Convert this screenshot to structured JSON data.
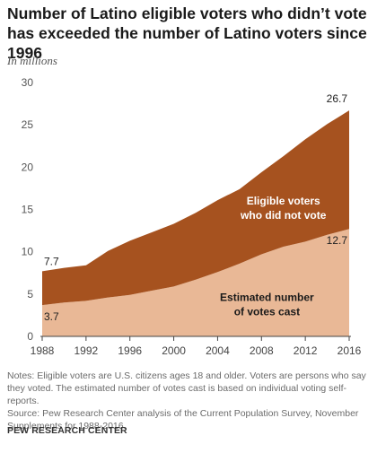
{
  "title": "Number of Latino eligible voters who didn’t vote has exceeded the number of Latino voters since 1996",
  "unit_label": "In millions",
  "chart_data": {
    "type": "area",
    "stacked": true,
    "title": "Number of Latino eligible voters who didn’t vote has exceeded the number of Latino voters since 1996",
    "ylabel": "In millions",
    "x": [
      1988,
      1990,
      1992,
      1994,
      1996,
      1998,
      2000,
      2002,
      2004,
      2006,
      2008,
      2010,
      2012,
      2014,
      2016
    ],
    "xticks": [
      "1988",
      "1992",
      "1996",
      "2000",
      "2004",
      "2008",
      "2012",
      "2016"
    ],
    "yticks": [
      "0",
      "5",
      "10",
      "15",
      "20",
      "25",
      "30"
    ],
    "ylim": [
      0,
      30
    ],
    "series": [
      {
        "name": "Estimated number of votes cast",
        "label_lines": [
          "Estimated number",
          "of votes cast"
        ],
        "color": "#e9b896",
        "values": [
          3.7,
          4.0,
          4.2,
          4.6,
          4.9,
          5.4,
          5.9,
          6.7,
          7.6,
          8.6,
          9.7,
          10.6,
          11.2,
          12.0,
          12.7
        ]
      },
      {
        "name": "Eligible voters who did not vote",
        "label_lines": [
          "Eligible voters",
          "who did not vote"
        ],
        "color": "#a6521f",
        "values": [
          4.0,
          4.1,
          4.2,
          5.5,
          6.4,
          6.9,
          7.4,
          7.9,
          8.5,
          8.8,
          9.7,
          10.7,
          12.1,
          13.1,
          14.0
        ]
      }
    ],
    "totals": [
      7.7,
      8.1,
      8.4,
      10.1,
      11.3,
      12.3,
      13.3,
      14.6,
      16.1,
      17.4,
      19.4,
      21.3,
      23.3,
      25.1,
      26.7
    ],
    "data_labels": [
      {
        "text": "7.7",
        "x": 1988,
        "value": 7.7
      },
      {
        "text": "3.7",
        "x": 1988,
        "value": 3.7
      },
      {
        "text": "26.7",
        "x": 2016,
        "value": 26.7
      },
      {
        "text": "12.7",
        "x": 2016,
        "value": 12.7
      }
    ],
    "grid": false
  },
  "notes": [
    "Notes: Eligible voters are U.S. citizens ages 18 and older. Voters are persons who say they voted. The estimated number of votes cast is based on individual voting self-reports.",
    "Source: Pew Research Center analysis of the Current Population Survey, November Supplements for 1988-2016."
  ],
  "source_org": "PEW RESEARCH CENTER"
}
